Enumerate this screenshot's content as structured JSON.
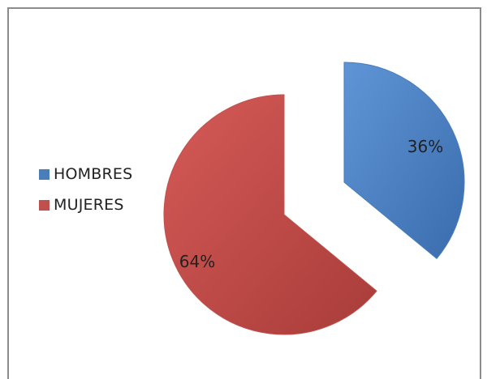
{
  "chart_data": {
    "type": "pie",
    "title": "",
    "categories": [
      "HOMBRES",
      "MUJERES"
    ],
    "values": [
      36,
      64
    ],
    "value_labels": [
      "36%",
      "64%"
    ],
    "colors": [
      "#4a7ebb",
      "#c0504d"
    ],
    "exploded": true,
    "legend_position": "left"
  }
}
